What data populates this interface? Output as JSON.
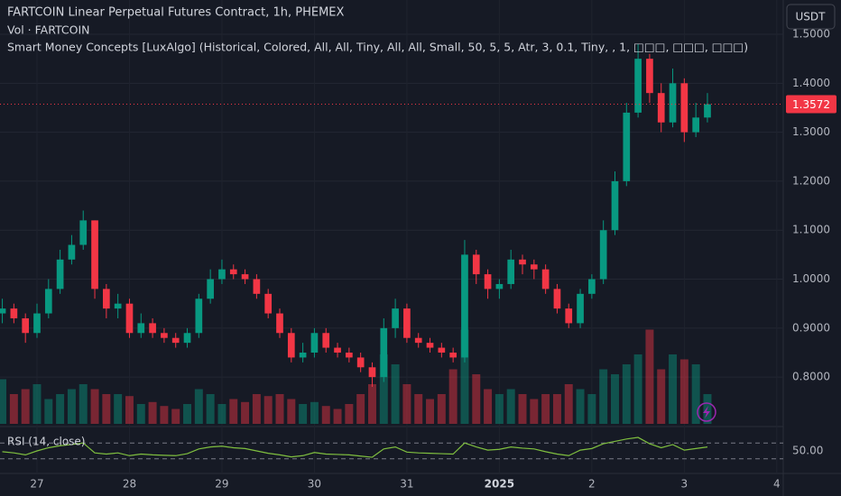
{
  "chart_data": {
    "type": "candlestick",
    "title": "FARTCOIN Linear Perpetual Futures Contract, 1h, PHEMEX",
    "volume_label": "Vol · FARTCOIN",
    "indicator_label": "Smart Money Concepts [LuxAlgo] (Historical, Colored, All, All, Tiny, All, All, Small, 50, 5, 5, Atr, 3, 0.1, Tiny, , 1, □□□, □□□, □□□)",
    "currency": "USDT",
    "rsi_label": "RSI (14, close)",
    "up_color": "#089981",
    "down_color": "#f23645",
    "x": [
      -0.375,
      -0.25,
      -0.125,
      0,
      0.125,
      0.25,
      0.375,
      0.5,
      0.625,
      0.75,
      0.875,
      1,
      1.125,
      1.25,
      1.375,
      1.5,
      1.625,
      1.75,
      1.875,
      2,
      2.125,
      2.25,
      2.375,
      2.5,
      2.625,
      2.75,
      2.875,
      3,
      3.125,
      3.25,
      3.375,
      3.5,
      3.625,
      3.75,
      3.875,
      4,
      4.125,
      4.25,
      4.375,
      4.5,
      4.625,
      4.75,
      4.875,
      5,
      5.125,
      5.25,
      5.375,
      5.5,
      5.625,
      5.75,
      5.875,
      6,
      6.125,
      6.25,
      6.375,
      6.5,
      6.625,
      6.75,
      6.875,
      7,
      7.125,
      7.25
    ],
    "open": [
      0.93,
      0.94,
      0.92,
      0.89,
      0.93,
      0.98,
      1.04,
      1.07,
      1.12,
      0.98,
      0.94,
      0.95,
      0.89,
      0.91,
      0.89,
      0.88,
      0.87,
      0.89,
      0.96,
      1.0,
      1.02,
      1.01,
      1.0,
      0.97,
      0.93,
      0.89,
      0.84,
      0.85,
      0.89,
      0.86,
      0.85,
      0.84,
      0.82,
      0.8,
      0.9,
      0.94,
      0.88,
      0.87,
      0.86,
      0.85,
      0.84,
      1.05,
      1.01,
      0.98,
      0.99,
      1.04,
      1.03,
      1.02,
      0.98,
      0.94,
      0.91,
      0.97,
      1.0,
      1.1,
      1.2,
      1.34,
      1.45,
      1.38,
      1.32,
      1.4,
      1.3,
      1.33
    ],
    "high": [
      0.96,
      0.95,
      0.93,
      0.95,
      1.0,
      1.06,
      1.09,
      1.14,
      1.12,
      0.99,
      0.97,
      0.96,
      0.93,
      0.92,
      0.9,
      0.89,
      0.9,
      0.97,
      1.02,
      1.04,
      1.03,
      1.02,
      1.01,
      0.98,
      0.94,
      0.9,
      0.87,
      0.9,
      0.9,
      0.87,
      0.86,
      0.85,
      0.83,
      0.92,
      0.96,
      0.95,
      0.89,
      0.88,
      0.87,
      0.86,
      1.08,
      1.06,
      1.02,
      1.0,
      1.06,
      1.05,
      1.04,
      1.03,
      0.99,
      0.95,
      0.98,
      1.01,
      1.12,
      1.22,
      1.36,
      1.48,
      1.46,
      1.4,
      1.43,
      1.41,
      1.36,
      1.38
    ],
    "low": [
      0.91,
      0.91,
      0.87,
      0.88,
      0.92,
      0.97,
      1.03,
      1.06,
      0.96,
      0.92,
      0.92,
      0.88,
      0.88,
      0.88,
      0.87,
      0.86,
      0.86,
      0.88,
      0.95,
      0.99,
      1.0,
      0.99,
      0.96,
      0.92,
      0.88,
      0.83,
      0.83,
      0.84,
      0.85,
      0.84,
      0.83,
      0.81,
      0.78,
      0.79,
      0.88,
      0.87,
      0.86,
      0.85,
      0.84,
      0.83,
      0.83,
      0.99,
      0.96,
      0.96,
      0.98,
      1.01,
      1.0,
      0.97,
      0.93,
      0.9,
      0.9,
      0.96,
      0.99,
      1.09,
      1.19,
      1.33,
      1.36,
      1.3,
      1.31,
      1.28,
      1.29,
      1.32
    ],
    "close": [
      0.94,
      0.92,
      0.89,
      0.93,
      0.98,
      1.04,
      1.07,
      1.12,
      0.98,
      0.94,
      0.95,
      0.89,
      0.91,
      0.89,
      0.88,
      0.87,
      0.89,
      0.96,
      1.0,
      1.02,
      1.01,
      1.0,
      0.97,
      0.93,
      0.89,
      0.84,
      0.85,
      0.89,
      0.86,
      0.85,
      0.84,
      0.82,
      0.8,
      0.9,
      0.94,
      0.88,
      0.87,
      0.86,
      0.85,
      0.84,
      1.05,
      1.01,
      0.98,
      0.99,
      1.04,
      1.03,
      1.02,
      0.98,
      0.94,
      0.91,
      0.97,
      1.0,
      1.1,
      1.2,
      1.34,
      1.45,
      1.38,
      1.32,
      1.4,
      1.3,
      1.33,
      1.3572
    ],
    "volume": [
      45,
      30,
      35,
      40,
      25,
      30,
      35,
      40,
      35,
      30,
      30,
      28,
      20,
      22,
      18,
      15,
      20,
      35,
      30,
      20,
      25,
      22,
      30,
      28,
      30,
      25,
      20,
      22,
      18,
      15,
      20,
      30,
      40,
      70,
      60,
      40,
      30,
      25,
      30,
      55,
      95,
      50,
      35,
      30,
      35,
      30,
      25,
      30,
      30,
      40,
      35,
      30,
      55,
      50,
      60,
      70,
      95,
      55,
      70,
      65,
      60,
      30
    ],
    "volume_lim": [
      0,
      100
    ],
    "rsi": [
      48,
      45,
      40,
      50,
      58,
      63,
      66,
      70,
      45,
      42,
      45,
      38,
      42,
      40,
      39,
      38,
      43,
      55,
      60,
      62,
      58,
      56,
      50,
      44,
      40,
      35,
      38,
      46,
      42,
      41,
      40,
      37,
      34,
      55,
      60,
      47,
      45,
      44,
      43,
      42,
      70,
      60,
      52,
      54,
      60,
      57,
      55,
      48,
      42,
      38,
      52,
      56,
      68,
      74,
      80,
      84,
      68,
      58,
      66,
      52,
      56,
      60
    ],
    "rsi_lim": [
      0,
      100
    ],
    "rsi_bands": [
      70,
      30
    ],
    "rsi_ticks": [
      {
        "value": 50,
        "label": "50.00"
      }
    ],
    "xlim": [
      -0.4,
      8.07
    ],
    "xticks": [
      {
        "value": 0,
        "label": "27"
      },
      {
        "value": 1,
        "label": "28"
      },
      {
        "value": 2,
        "label": "29"
      },
      {
        "value": 3,
        "label": "30"
      },
      {
        "value": 4,
        "label": "31"
      },
      {
        "value": 5,
        "label": "2025"
      },
      {
        "value": 6,
        "label": "2"
      },
      {
        "value": 7,
        "label": "3"
      },
      {
        "value": 8,
        "label": "4"
      }
    ],
    "ylim": [
      0.7045,
      1.57
    ],
    "yticks": [
      {
        "value": 0.8,
        "label": "0.8000"
      },
      {
        "value": 0.9,
        "label": "0.9000"
      },
      {
        "value": 1.0,
        "label": "1.0000"
      },
      {
        "value": 1.1,
        "label": "1.1000"
      },
      {
        "value": 1.2,
        "label": "1.2000"
      },
      {
        "value": 1.3,
        "label": "1.3000"
      },
      {
        "value": 1.4,
        "label": "1.4000"
      },
      {
        "value": 1.5,
        "label": "1.5000"
      }
    ],
    "grid": true
  }
}
